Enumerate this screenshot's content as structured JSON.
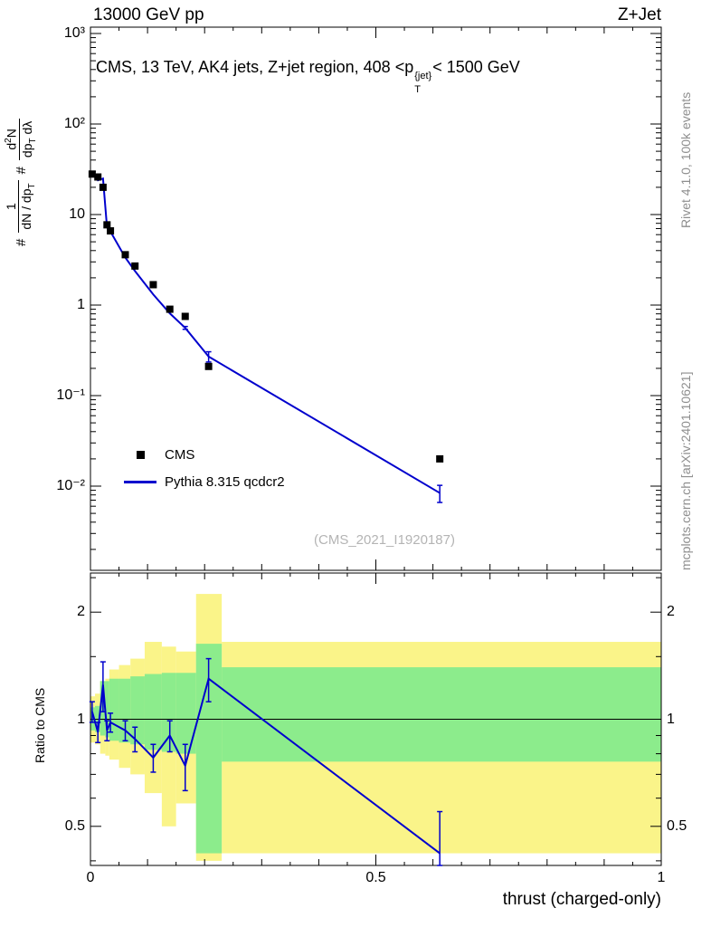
{
  "header": {
    "beam_info": "13000 GeV pp",
    "analysis_tag": "Z+Jet"
  },
  "annotation": {
    "prefix": "CMS, 13 TeV, AK4 jets, Z+jet region, 408 <p",
    "sup": "{jet}",
    "sub": "T",
    "suffix": "< 1500 GeV"
  },
  "main_ylabel": {
    "hash1": "#",
    "frac1_num": "1",
    "frac1_den": "dN / dp",
    "frac1_den_sub": "T",
    "hash2": "#",
    "frac2_num": "d",
    "frac2_num_sup": "2",
    "frac2_num_tail": "N",
    "frac2_den": "dp",
    "frac2_den_sub": "T",
    "frac2_den_tail": " dλ"
  },
  "legend": {
    "items": [
      {
        "label": "CMS",
        "marker": "black-square"
      },
      {
        "label": "Pythia 8.315 qcdcr2",
        "marker": "blue-line"
      }
    ]
  },
  "watermark": "(CMS_2021_I1920187)",
  "side_notes": {
    "generator": "Rivet 4.1.0,  100k events",
    "reference": "mcplots.cern.ch [arXiv:2401.10621]"
  },
  "chart_data": {
    "type": "line",
    "title": "CMS, 13 TeV, AK4 jets, Z+jet region, 408 < pT{jet} < 1500 GeV",
    "xlabel": "thrust (charged-only)",
    "ylabel": "# 1/(dN/dpT) d²N/(dpT dλ)",
    "x_range": [
      0,
      1
    ],
    "xticks": [
      {
        "v": 0,
        "label": "0"
      },
      {
        "v": 0.5,
        "label": "0.5"
      },
      {
        "v": 1,
        "label": "1"
      }
    ],
    "main_panel": {
      "y_scale": "log",
      "y_range_exp": [
        -2.93,
        3.07
      ],
      "yticks": [
        {
          "v": 3,
          "label": "10³"
        },
        {
          "v": 2,
          "label": "10²"
        },
        {
          "v": 1,
          "label": "10"
        },
        {
          "v": 0,
          "label": "1"
        },
        {
          "v": -1,
          "label": "10⁻¹"
        },
        {
          "v": -2,
          "label": "10⁻²"
        }
      ],
      "series": [
        {
          "name": "CMS",
          "style": "scatter-square",
          "color": "#000000",
          "x": [
            0.003,
            0.013,
            0.022,
            0.029,
            0.035,
            0.061,
            0.078,
            0.11,
            0.139,
            0.166,
            0.207,
            0.612
          ],
          "y": [
            28,
            26,
            20,
            7.7,
            6.6,
            3.6,
            2.7,
            1.68,
            0.9,
            0.75,
            0.21,
            0.02
          ]
        },
        {
          "name": "Pythia 8.315 qcdcr2",
          "style": "line",
          "color": "#0000cd",
          "x": [
            0.003,
            0.013,
            0.022,
            0.029,
            0.035,
            0.061,
            0.078,
            0.11,
            0.139,
            0.166,
            0.207,
            0.612
          ],
          "y": [
            29.4,
            23.9,
            25.0,
            7.2,
            6.5,
            3.35,
            2.38,
            1.31,
            0.81,
            0.56,
            0.27,
            0.0084
          ],
          "yerr": [
            0,
            0,
            0,
            0,
            0,
            0,
            0,
            0,
            0,
            0.02,
            0.035,
            0.0018
          ]
        }
      ]
    },
    "ratio_panel": {
      "y_scale": "log",
      "ylabel": "Ratio to CMS",
      "y_range": [
        0.39,
        2.58
      ],
      "reference_line": 1,
      "yticks": [
        {
          "v": 2,
          "label": "2"
        },
        {
          "v": 1,
          "label": "1"
        },
        {
          "v": 0.5,
          "label": "0.5"
        }
      ],
      "minor_yticks": [
        0.4,
        0.6,
        0.7,
        0.8,
        0.9,
        1.5,
        2.5
      ],
      "bands": [
        {
          "name": "data-uncertainty-outer",
          "color": "#faf489",
          "bins": [
            [
              0.0,
              0.008,
              0.86,
              1.16
            ],
            [
              0.008,
              0.017,
              0.85,
              1.18
            ],
            [
              0.017,
              0.026,
              0.8,
              1.28
            ],
            [
              0.026,
              0.033,
              0.79,
              1.3
            ],
            [
              0.033,
              0.05,
              0.77,
              1.38
            ],
            [
              0.05,
              0.07,
              0.73,
              1.42
            ],
            [
              0.07,
              0.095,
              0.7,
              1.48
            ],
            [
              0.095,
              0.125,
              0.62,
              1.65
            ],
            [
              0.125,
              0.15,
              0.5,
              1.6
            ],
            [
              0.15,
              0.185,
              0.58,
              1.55
            ],
            [
              0.185,
              0.23,
              0.4,
              2.25
            ],
            [
              0.23,
              1.0,
              0.42,
              1.65
            ]
          ]
        },
        {
          "name": "data-uncertainty-inner",
          "color": "#8cec8c",
          "bins": [
            [
              0.0,
              0.008,
              0.93,
              1.08
            ],
            [
              0.008,
              0.017,
              0.92,
              1.09
            ],
            [
              0.017,
              0.026,
              0.9,
              1.28
            ],
            [
              0.026,
              0.033,
              0.89,
              1.28
            ],
            [
              0.033,
              0.05,
              0.87,
              1.3
            ],
            [
              0.05,
              0.07,
              0.86,
              1.3
            ],
            [
              0.07,
              0.095,
              0.85,
              1.32
            ],
            [
              0.095,
              0.125,
              0.82,
              1.34
            ],
            [
              0.125,
              0.15,
              0.81,
              1.35
            ],
            [
              0.15,
              0.185,
              0.8,
              1.35
            ],
            [
              0.185,
              0.23,
              0.42,
              1.63
            ],
            [
              0.23,
              1.0,
              0.76,
              1.4
            ]
          ]
        }
      ],
      "line": {
        "name": "Pythia 8.315 qcdcr2 / CMS",
        "color": "#0000cd",
        "x": [
          0.003,
          0.013,
          0.022,
          0.029,
          0.035,
          0.061,
          0.078,
          0.11,
          0.139,
          0.166,
          0.207,
          0.612
        ],
        "y": [
          1.05,
          0.92,
          1.25,
          0.93,
          0.98,
          0.93,
          0.88,
          0.78,
          0.9,
          0.74,
          1.3,
          0.42
        ],
        "yerr": [
          0.07,
          0.06,
          0.2,
          0.06,
          0.06,
          0.06,
          0.07,
          0.07,
          0.09,
          0.11,
          0.18,
          0.13
        ]
      }
    }
  }
}
